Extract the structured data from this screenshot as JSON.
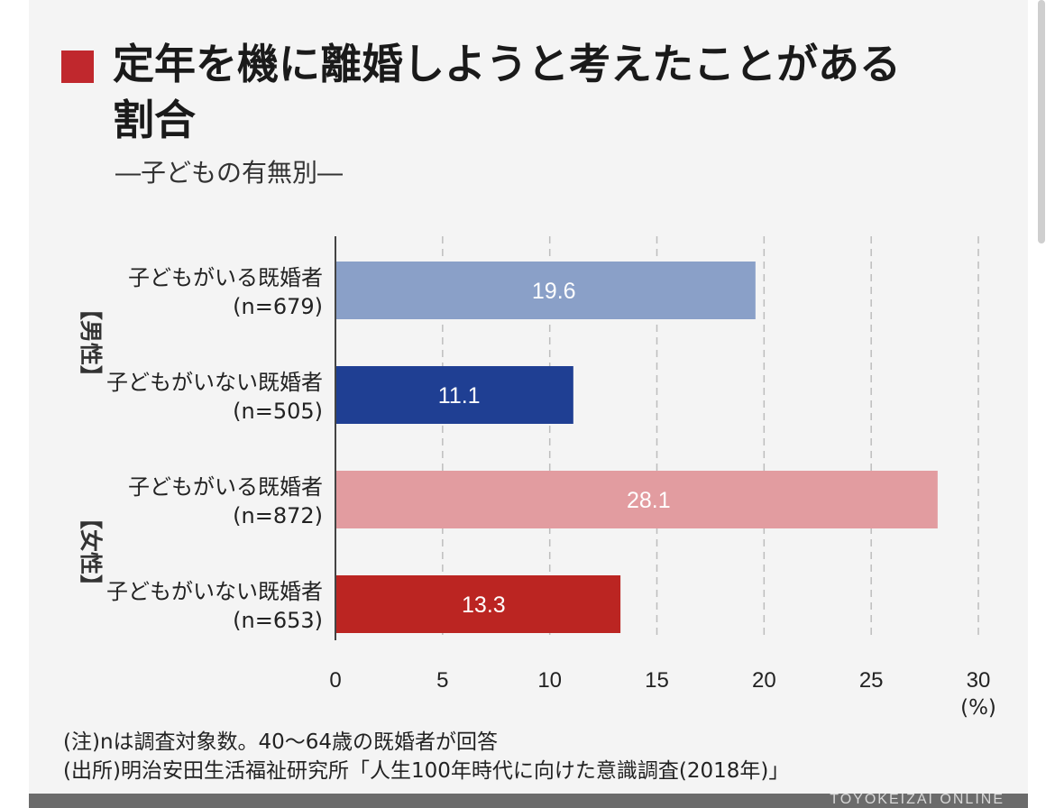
{
  "title": "定年を機に離婚しようと考えたことがある割合",
  "subtitle": "―子どもの有無別―",
  "colors": {
    "accent": "#c0282d",
    "male_with_children": "#8aa0c8",
    "male_without_children": "#1f3f93",
    "female_with_children": "#e29ca0",
    "female_without_children": "#bb2522"
  },
  "chart_data": {
    "type": "bar",
    "orientation": "horizontal",
    "groups": [
      {
        "label": "【男性】",
        "rows": [
          0,
          1
        ]
      },
      {
        "label": "【女性】",
        "rows": [
          2,
          3
        ]
      }
    ],
    "categories": [
      "子どもがいる既婚者\n(n=679)",
      "子どもがいない既婚者\n(n=505)",
      "子どもがいる既婚者\n(n=872)",
      "子どもがいない既婚者\n(n=653)"
    ],
    "values": [
      19.6,
      11.1,
      28.1,
      13.3
    ],
    "data_labels": [
      "19.6",
      "11.1",
      "28.1",
      "13.3"
    ],
    "xlim": [
      0,
      30
    ],
    "xticks": [
      0,
      5,
      10,
      15,
      20,
      25,
      30
    ],
    "unit_label": "(%)",
    "grid": true
  },
  "footnotes": {
    "note": "(注)nは調査対象数。40〜64歳の既婚者が回答",
    "source": "(出所)明治安田生活福祉研究所「人生100年時代に向けた意識調査(2018年)」"
  },
  "brand": "TOYOKEIZAI ONLINE"
}
